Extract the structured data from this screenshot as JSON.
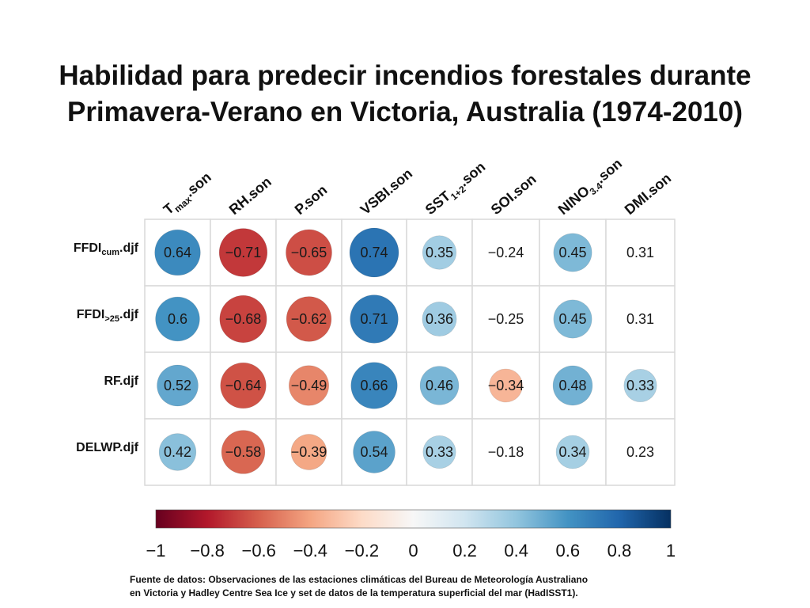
{
  "chart_data": {
    "type": "heatmap",
    "title_lines": [
      "Habilidad para predecir incendios forestales durante",
      "Primavera-Verano en Victoria, Australia (1974-2010)"
    ],
    "columns": [
      {
        "main": "T",
        "sub": "max",
        "suffix": ".son"
      },
      {
        "main": "RH.son",
        "sub": "",
        "suffix": ""
      },
      {
        "main": "P.son",
        "sub": "",
        "suffix": ""
      },
      {
        "main": "VSBI.son",
        "sub": "",
        "suffix": ""
      },
      {
        "main": "SST",
        "sub": "1+2",
        "suffix": ".son"
      },
      {
        "main": "SOI.son",
        "sub": "",
        "suffix": ""
      },
      {
        "main": "NINO",
        "sub": "3.4",
        "suffix": ".son"
      },
      {
        "main": "DMI.son",
        "sub": "",
        "suffix": ""
      }
    ],
    "rows": [
      {
        "main": "FFDI",
        "sub": "cum",
        "suffix": ".djf"
      },
      {
        "main": "FFDI",
        "sub": ">25",
        "suffix": ".djf"
      },
      {
        "main": "RF.djf",
        "sub": "",
        "suffix": ""
      },
      {
        "main": "DELWP.djf",
        "sub": "",
        "suffix": ""
      }
    ],
    "values": [
      [
        0.64,
        -0.71,
        -0.65,
        0.74,
        0.35,
        -0.24,
        0.45,
        0.31
      ],
      [
        0.6,
        -0.68,
        -0.62,
        0.71,
        0.36,
        -0.25,
        0.45,
        0.31
      ],
      [
        0.52,
        -0.64,
        -0.49,
        0.66,
        0.46,
        -0.34,
        0.48,
        0.33
      ],
      [
        0.42,
        -0.58,
        -0.39,
        0.54,
        0.33,
        -0.18,
        0.34,
        0.23
      ]
    ],
    "circle_shown": [
      [
        true,
        true,
        true,
        true,
        true,
        false,
        true,
        false
      ],
      [
        true,
        true,
        true,
        true,
        true,
        false,
        true,
        false
      ],
      [
        true,
        true,
        true,
        true,
        true,
        true,
        true,
        true
      ],
      [
        true,
        true,
        true,
        true,
        true,
        false,
        true,
        false
      ]
    ],
    "colorbar": {
      "range": [
        -1,
        1
      ],
      "ticks": [
        -1,
        -0.8,
        -0.6,
        -0.4,
        -0.2,
        0,
        0.2,
        0.4,
        0.6,
        0.8,
        1
      ],
      "tick_labels": [
        "−1",
        "−0.8",
        "−0.6",
        "−0.4",
        "−0.2",
        "0",
        "0.2",
        "0.4",
        "0.6",
        "0.8",
        "1"
      ],
      "colors": [
        "#67001f",
        "#b2182b",
        "#d6604d",
        "#f4a582",
        "#fddbc7",
        "#f7f7f7",
        "#d1e5f0",
        "#92c5de",
        "#4393c3",
        "#2166ac",
        "#053061"
      ]
    },
    "source_lines": [
      "Fuente de datos: Observaciones de las estaciones climáticas del Bureau de Meteorología Australiano",
      "en Victoria y Hadley Centre Sea Ice y set de datos de la temperatura superficial del mar (HadISST1)."
    ]
  }
}
